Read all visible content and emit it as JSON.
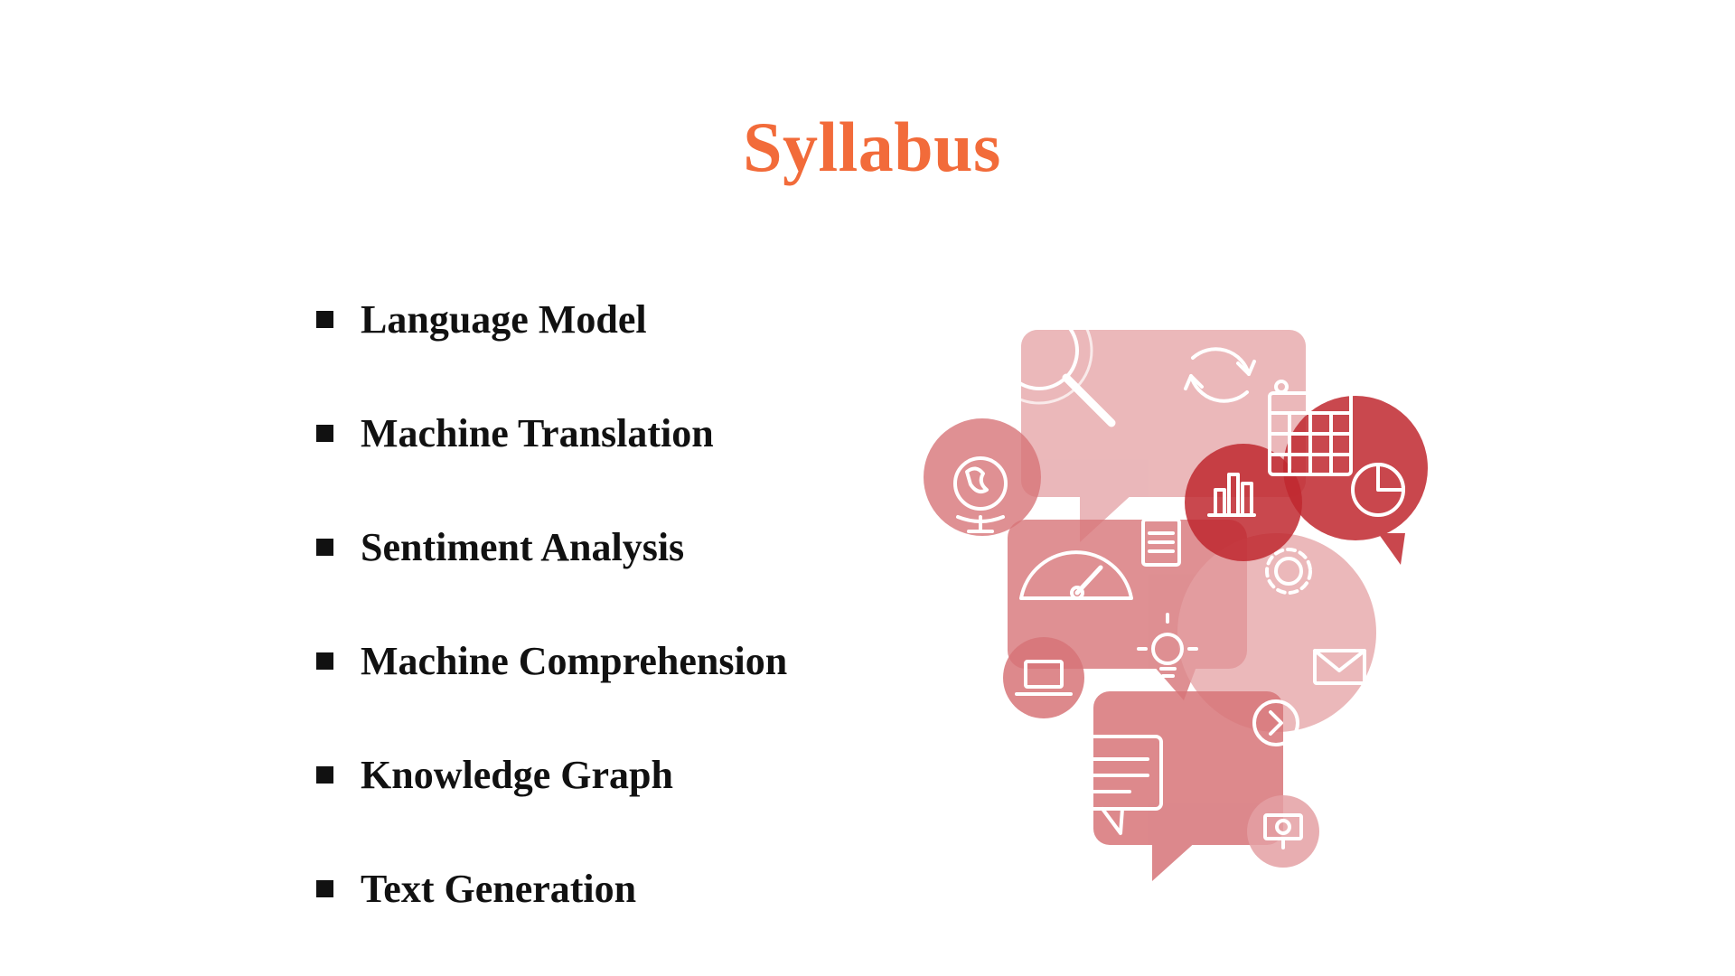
{
  "slide": {
    "title": "Syllabus",
    "title_color": "#f26b3a",
    "items": [
      {
        "label": "Language Model"
      },
      {
        "label": "Machine Translation"
      },
      {
        "label": "Sentiment Analysis"
      },
      {
        "label": "Machine Comprehension"
      },
      {
        "label": "Knowledge Graph"
      },
      {
        "label": "Text Generation"
      }
    ]
  },
  "illustration": {
    "palette": {
      "light": "#e4a0a3",
      "medium": "#d77478",
      "dark": "#c0282f",
      "icon_stroke": "#ffffff"
    },
    "icons": [
      "search-icon",
      "refresh-icon",
      "calendar-icon",
      "globe-icon",
      "bar-chart-icon",
      "pie-chart-icon",
      "notepad-icon",
      "gauge-icon",
      "gear-icon",
      "lightbulb-icon",
      "envelope-icon",
      "laptop-icon",
      "chevron-right-icon",
      "chat-lines-icon",
      "presentation-icon"
    ]
  }
}
